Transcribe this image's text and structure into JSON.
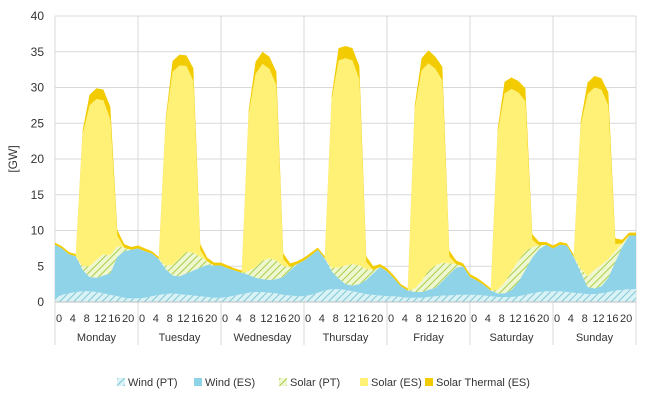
{
  "chart_data": {
    "type": "area",
    "stacked": true,
    "ylabel": "[GW]",
    "ylim": [
      0,
      40
    ],
    "yticks": [
      0,
      5,
      10,
      15,
      20,
      25,
      30,
      35,
      40
    ],
    "grid": true,
    "legend_position": "bottom",
    "days": [
      "Monday",
      "Tuesday",
      "Wednesday",
      "Thursday",
      "Friday",
      "Saturday",
      "Sunday"
    ],
    "hour_ticks": [
      "0",
      "4",
      "8",
      "12",
      "16",
      "20"
    ],
    "hours": [
      0,
      2,
      4,
      6,
      8,
      10,
      12,
      14,
      16,
      18,
      20,
      22
    ],
    "series": [
      {
        "name": "Wind (PT)",
        "color": "#9bdbe6",
        "pattern": "hatch",
        "values": [
          [
            0.5,
            1.0,
            1.2,
            1.4,
            1.5,
            1.5,
            1.4,
            1.2,
            1.0,
            0.8,
            0.6,
            0.5
          ],
          [
            0.5,
            0.6,
            0.8,
            1.0,
            1.1,
            1.2,
            1.1,
            1.0,
            0.9,
            0.8,
            0.7,
            0.6
          ],
          [
            0.6,
            0.7,
            0.9,
            1.1,
            1.3,
            1.4,
            1.4,
            1.3,
            1.2,
            1.0,
            0.9,
            0.8
          ],
          [
            0.8,
            1.0,
            1.3,
            1.6,
            1.8,
            1.8,
            1.7,
            1.5,
            1.3,
            1.1,
            1.0,
            0.9
          ],
          [
            0.8,
            0.8,
            0.7,
            0.6,
            0.6,
            0.6,
            0.7,
            0.8,
            0.9,
            0.9,
            1.0,
            1.0
          ],
          [
            1.0,
            1.0,
            0.9,
            0.8,
            0.7,
            0.7,
            0.7,
            0.8,
            1.0,
            1.2,
            1.4,
            1.5
          ],
          [
            1.5,
            1.5,
            1.4,
            1.3,
            1.2,
            1.1,
            1.1,
            1.2,
            1.4,
            1.6,
            1.7,
            1.8
          ]
        ]
      },
      {
        "name": "Wind (ES)",
        "color": "#8fd3e8",
        "pattern": "solid",
        "values": [
          [
            7.5,
            6.5,
            5.5,
            5.0,
            3.0,
            2.0,
            2.0,
            2.5,
            3.0,
            5.5,
            6.5,
            6.8
          ],
          [
            7.0,
            6.5,
            6.0,
            5.0,
            3.5,
            2.5,
            2.5,
            3.0,
            3.5,
            4.0,
            4.5,
            4.5
          ],
          [
            4.5,
            4.0,
            3.5,
            3.0,
            2.5,
            2.0,
            1.8,
            1.8,
            2.0,
            2.5,
            3.5,
            4.5
          ],
          [
            5.0,
            5.5,
            6.0,
            4.5,
            2.5,
            1.5,
            0.8,
            0.8,
            1.2,
            2.0,
            3.0,
            4.0
          ],
          [
            3.5,
            2.5,
            1.5,
            1.0,
            0.8,
            0.8,
            1.0,
            1.2,
            2.0,
            3.0,
            3.8,
            4.0
          ],
          [
            2.5,
            2.0,
            1.5,
            0.8,
            0.5,
            0.5,
            1.0,
            2.0,
            3.5,
            5.0,
            6.0,
            6.5
          ],
          [
            6.0,
            6.5,
            6.5,
            5.0,
            3.0,
            1.0,
            0.8,
            1.0,
            2.0,
            4.0,
            6.0,
            7.5
          ]
        ]
      },
      {
        "name": "Solar (PT)",
        "color": "#c6e07a",
        "pattern": "hatch",
        "values": [
          [
            0,
            0,
            0,
            0,
            0.5,
            1.5,
            2.5,
            3.0,
            2.5,
            1.5,
            0.5,
            0
          ],
          [
            0,
            0,
            0,
            0,
            0.5,
            1.5,
            2.5,
            3.0,
            2.5,
            1.5,
            0.5,
            0
          ],
          [
            0,
            0,
            0,
            0,
            0.5,
            1.5,
            2.6,
            3.0,
            2.6,
            1.5,
            0.5,
            0
          ],
          [
            0,
            0,
            0,
            0,
            0.5,
            1.5,
            2.6,
            3.0,
            2.6,
            1.5,
            0.5,
            0
          ],
          [
            0,
            0,
            0,
            0,
            0.5,
            1.5,
            2.7,
            3.1,
            2.6,
            1.5,
            0.5,
            0
          ],
          [
            0,
            0,
            0,
            0,
            0.5,
            1.5,
            2.6,
            3.0,
            2.6,
            1.5,
            0.5,
            0
          ],
          [
            0,
            0,
            0,
            0,
            0.5,
            1.5,
            2.6,
            3.0,
            2.6,
            1.5,
            0.5,
            0
          ]
        ]
      },
      {
        "name": "Solar (ES)",
        "color": "#fff176",
        "pattern": "solid",
        "values": [
          [
            0,
            0,
            0,
            0,
            18.5,
            22.5,
            22.5,
            21.5,
            19.0,
            1.5,
            0,
            0
          ],
          [
            0,
            0,
            0,
            0,
            20.0,
            27.0,
            27.0,
            26.0,
            24.0,
            1.0,
            0,
            0
          ],
          [
            0,
            0,
            0,
            0,
            22.0,
            27.0,
            27.5,
            26.5,
            24.5,
            1.0,
            0,
            0
          ],
          [
            0,
            0,
            0,
            0,
            23.5,
            29.0,
            29.0,
            28.5,
            26.0,
            1.0,
            0,
            0
          ],
          [
            0,
            0,
            0,
            0,
            25.0,
            29.5,
            29.0,
            27.5,
            25.5,
            1.0,
            0,
            0
          ],
          [
            0,
            0,
            0,
            0,
            22.0,
            26.5,
            25.5,
            23.5,
            21.0,
            1.0,
            0,
            0
          ],
          [
            0,
            0,
            0,
            0,
            20.0,
            25.5,
            25.5,
            24.5,
            21.5,
            1.0,
            0,
            0
          ]
        ]
      },
      {
        "name": "Solar Thermal (ES)",
        "color": "#f2cc00",
        "pattern": "solid",
        "values": [
          [
            0.3,
            0.3,
            0.3,
            0.3,
            0.5,
            1.5,
            1.5,
            1.5,
            1.8,
            0.8,
            0.5,
            0.4
          ],
          [
            0.4,
            0.4,
            0.3,
            0.3,
            0.5,
            1.5,
            1.5,
            1.5,
            1.8,
            0.8,
            0.5,
            0.4
          ],
          [
            0.4,
            0.4,
            0.3,
            0.3,
            0.5,
            1.7,
            1.7,
            1.7,
            1.9,
            0.8,
            0.5,
            0.4
          ],
          [
            0.4,
            0.4,
            0.3,
            0.3,
            0.5,
            1.7,
            1.7,
            1.7,
            1.9,
            0.8,
            0.5,
            0.4
          ],
          [
            0.4,
            0.4,
            0.3,
            0.3,
            0.5,
            1.7,
            1.8,
            1.7,
            1.9,
            0.8,
            0.5,
            0.4
          ],
          [
            0.4,
            0.4,
            0.3,
            0.3,
            0.5,
            1.6,
            1.6,
            1.6,
            1.8,
            0.8,
            0.5,
            0.4
          ],
          [
            0.4,
            0.4,
            0.3,
            0.3,
            0.5,
            1.6,
            1.6,
            1.6,
            1.8,
            0.8,
            0.5,
            0.4
          ]
        ]
      }
    ]
  }
}
